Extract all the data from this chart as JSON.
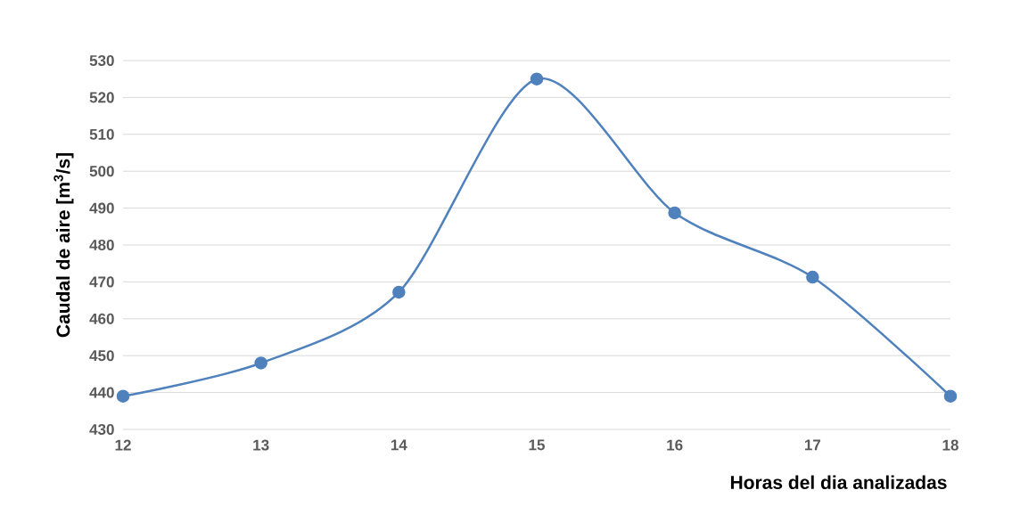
{
  "chart_data": {
    "type": "line",
    "xlabel": "Horas del dia analizadas",
    "ylabel": "Caudal de aire [m$^{3}$/s]",
    "x": [
      12,
      13,
      14,
      15,
      16,
      17,
      18
    ],
    "series": [
      {
        "color": "#4f81bd",
        "values": [
          439,
          448,
          467.2,
          525,
          488.7,
          471.3,
          439
        ]
      }
    ],
    "xlim": [
      12,
      18
    ],
    "xticks": [
      12,
      13,
      14,
      15,
      16,
      17,
      18
    ],
    "ylim": [
      430,
      530
    ],
    "yticks": [
      430,
      440,
      450,
      460,
      470,
      480,
      490,
      500,
      510,
      520,
      530
    ],
    "grid": "y",
    "marker": "circle",
    "line_style": "solid"
  }
}
